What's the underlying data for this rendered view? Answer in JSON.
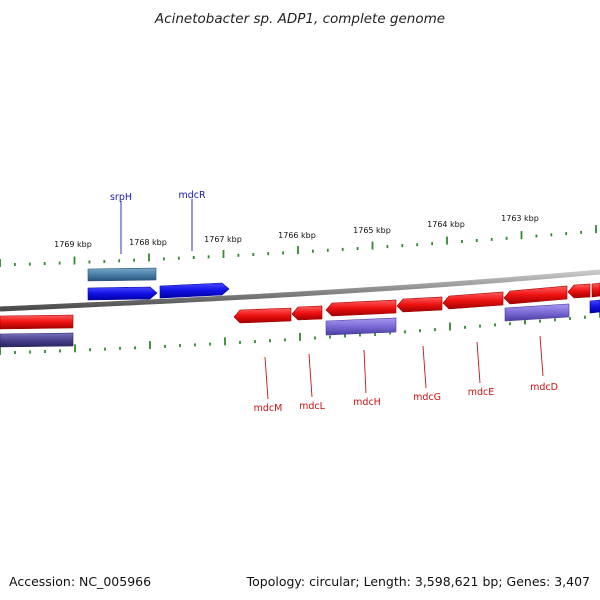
{
  "header": {
    "title": "Acinetobacter sp. ADP1, complete genome"
  },
  "footer": {
    "accession": "Accession: NC_005966",
    "topology": "Topology: circular; Length: 3,598,621 bp; Genes: 3,407"
  },
  "colors": {
    "forward_gene": "#1010e6",
    "forward_cds": "#4a7fa8",
    "reverse_gene": "#ee1111",
    "reverse_cds": "#7b6ad6",
    "reverse_cds_dark": "#4a4490",
    "backbone": "#8a8a8a",
    "ticks": "#2e8b2e",
    "label_forward": "#1a1ab0",
    "label_reverse": "#cc1111"
  },
  "scale_labels": [
    {
      "id": "1769",
      "text": "1769 kbp"
    },
    {
      "id": "1768",
      "text": "1768 kbp"
    },
    {
      "id": "1767",
      "text": "1767 kbp"
    },
    {
      "id": "1766",
      "text": "1766 kbp"
    },
    {
      "id": "1765",
      "text": "1765 kbp"
    },
    {
      "id": "1764",
      "text": "1764 kbp"
    },
    {
      "id": "1763",
      "text": "1763 kbp"
    }
  ],
  "gene_labels": {
    "forward": [
      {
        "id": "srpH",
        "text": "srpH"
      },
      {
        "id": "mdcR",
        "text": "mdcR"
      }
    ],
    "reverse": [
      {
        "id": "mdcM",
        "text": "mdcM"
      },
      {
        "id": "mdcL",
        "text": "mdcL"
      },
      {
        "id": "mdcH",
        "text": "mdcH"
      },
      {
        "id": "mdcG",
        "text": "mdcG"
      },
      {
        "id": "mdcE",
        "text": "mdcE"
      },
      {
        "id": "mdcD",
        "text": "mdcD"
      }
    ]
  }
}
